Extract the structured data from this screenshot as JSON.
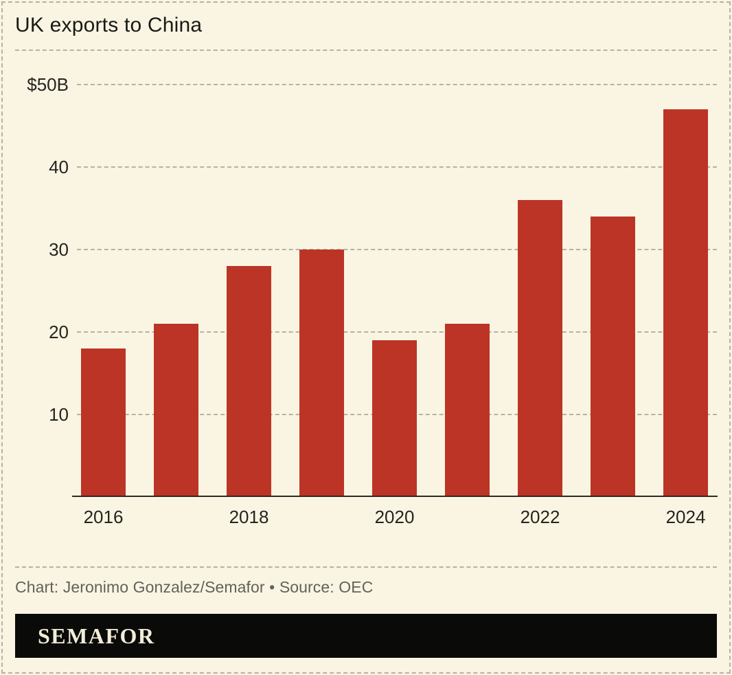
{
  "title": "UK exports to China",
  "footer": {
    "credit": "Chart: Jeronimo Gonzalez/Semafor • Source: OEC"
  },
  "logo": {
    "text": "SEMAFOR"
  },
  "colors": {
    "background": "#f9f5e2",
    "bar": "#bc3426",
    "grid": "#b6b2a4",
    "axis": "#2b2a23",
    "title_text": "#191915",
    "tick_text": "#25241f",
    "footer_text": "#62615a",
    "logo_bg": "#0a0a08",
    "logo_text": "#f2ecd8"
  },
  "chart_data": {
    "type": "bar",
    "title": "UK exports to China",
    "categories": [
      "2016",
      "2017",
      "2018",
      "2019",
      "2020",
      "2021",
      "2022",
      "2023",
      "2024"
    ],
    "values": [
      18,
      21,
      28,
      30,
      19,
      21,
      36,
      34,
      47
    ],
    "xlabel": "",
    "ylabel": "",
    "ylim": [
      0,
      50
    ],
    "y_ticks": [
      {
        "value": 50,
        "label": "$50B"
      },
      {
        "value": 40,
        "label": "40"
      },
      {
        "value": 30,
        "label": "30"
      },
      {
        "value": 20,
        "label": "20"
      },
      {
        "value": 10,
        "label": "10"
      }
    ],
    "x_ticks": [
      {
        "index": 0,
        "label": "2016"
      },
      {
        "index": 2,
        "label": "2018"
      },
      {
        "index": 4,
        "label": "2020"
      },
      {
        "index": 6,
        "label": "2022"
      },
      {
        "index": 8,
        "label": "2024"
      }
    ],
    "grid": "horizontal-dashed",
    "legend": "none"
  }
}
